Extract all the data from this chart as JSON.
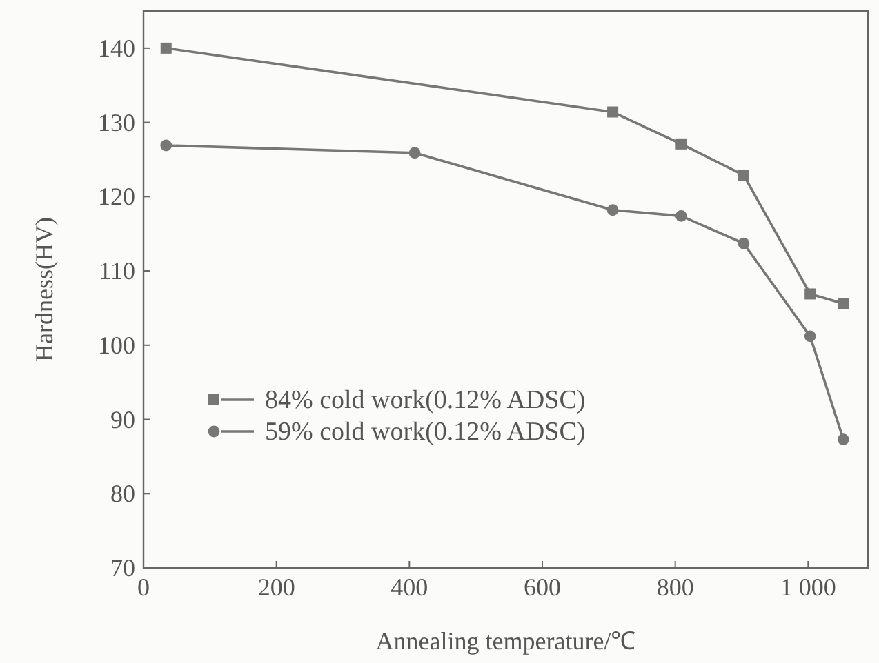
{
  "chart_data": {
    "type": "line",
    "xlabel": "Annealing temperature/℃",
    "ylabel": "Hardness(HV)",
    "xlim": [
      0,
      1090
    ],
    "ylim": [
      70,
      145
    ],
    "xticks": [
      0,
      200,
      400,
      600,
      800,
      {
        "value": 1000,
        "label": "1 000"
      }
    ],
    "yticks": [
      70,
      80,
      90,
      100,
      110,
      120,
      130,
      140
    ],
    "grid": false,
    "legend": "bottom left",
    "line_style": "solid",
    "series": [
      {
        "name": "84% cold work(0.12% ADSC)",
        "color": "#777777",
        "marker": "square",
        "x": [
          34,
          706,
          809,
          903,
          1003,
          1053
        ],
        "values": [
          140,
          131.4,
          127.1,
          122.9,
          106.9,
          105.6
        ]
      },
      {
        "name": "59% cold work(0.12% ADSC)",
        "color": "#777777",
        "marker": "circle",
        "x": [
          34,
          408,
          706,
          809,
          903,
          1003,
          1053
        ],
        "values": [
          126.9,
          125.9,
          118.2,
          117.4,
          113.7,
          101.2,
          87.3
        ]
      }
    ]
  }
}
